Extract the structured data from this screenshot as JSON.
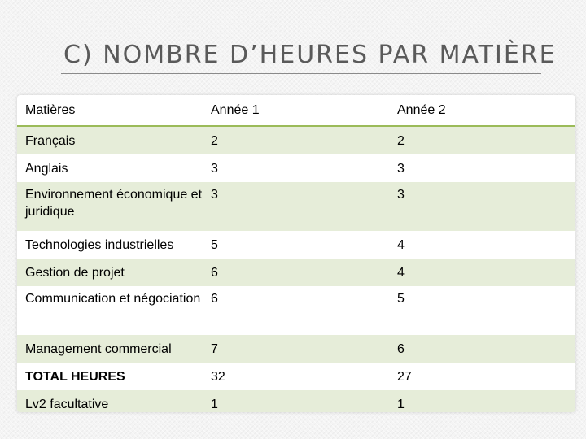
{
  "title": "C)  NOMBRE D’HEURES PAR MATIÈRE",
  "colors": {
    "accent": "#9bbb59",
    "band": "#e6edd9"
  },
  "table": {
    "headers": [
      "Matières",
      "Année 1",
      "Année 2"
    ],
    "rows": [
      [
        "Français",
        "2",
        "2"
      ],
      [
        "Anglais",
        "3",
        "3"
      ],
      [
        "Environnement économique et juridique",
        "3",
        "3"
      ],
      [
        "Technologies industrielles",
        "5",
        "4"
      ],
      [
        "Gestion de projet",
        "6",
        "4"
      ],
      [
        "Communication et négociation",
        "6",
        "5"
      ],
      [
        "Management commercial",
        "7",
        "6"
      ],
      [
        "TOTAL HEURES",
        "32",
        "27"
      ],
      [
        "Lv2 facultative",
        "1",
        "1"
      ]
    ]
  }
}
